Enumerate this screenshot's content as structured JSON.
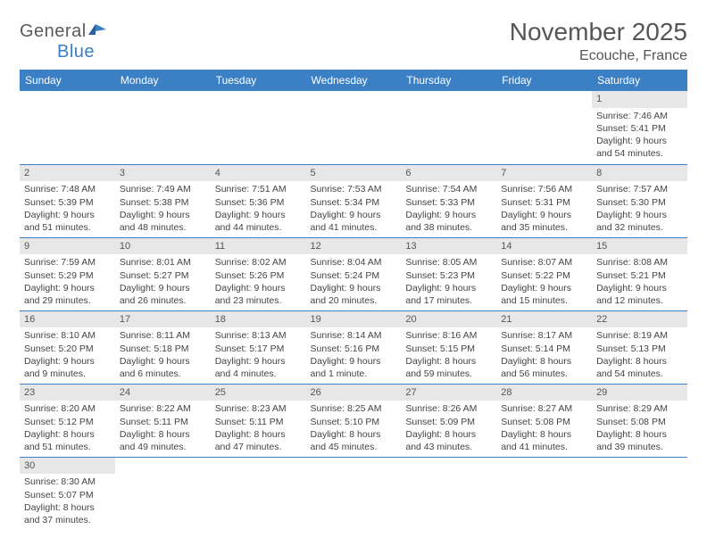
{
  "logo": {
    "text1": "General",
    "text2": "Blue"
  },
  "title": {
    "month": "November 2025",
    "location": "Ecouche, France"
  },
  "colors": {
    "header_bg": "#3b7fc4",
    "daynum_bg": "#e7e7e7",
    "row_border": "#3b7fc4",
    "text": "#555"
  },
  "day_headers": [
    "Sunday",
    "Monday",
    "Tuesday",
    "Wednesday",
    "Thursday",
    "Friday",
    "Saturday"
  ],
  "weeks": [
    [
      null,
      null,
      null,
      null,
      null,
      null,
      {
        "n": "1",
        "sr": "Sunrise: 7:46 AM",
        "ss": "Sunset: 5:41 PM",
        "dl": "Daylight: 9 hours and 54 minutes."
      }
    ],
    [
      {
        "n": "2",
        "sr": "Sunrise: 7:48 AM",
        "ss": "Sunset: 5:39 PM",
        "dl": "Daylight: 9 hours and 51 minutes."
      },
      {
        "n": "3",
        "sr": "Sunrise: 7:49 AM",
        "ss": "Sunset: 5:38 PM",
        "dl": "Daylight: 9 hours and 48 minutes."
      },
      {
        "n": "4",
        "sr": "Sunrise: 7:51 AM",
        "ss": "Sunset: 5:36 PM",
        "dl": "Daylight: 9 hours and 44 minutes."
      },
      {
        "n": "5",
        "sr": "Sunrise: 7:53 AM",
        "ss": "Sunset: 5:34 PM",
        "dl": "Daylight: 9 hours and 41 minutes."
      },
      {
        "n": "6",
        "sr": "Sunrise: 7:54 AM",
        "ss": "Sunset: 5:33 PM",
        "dl": "Daylight: 9 hours and 38 minutes."
      },
      {
        "n": "7",
        "sr": "Sunrise: 7:56 AM",
        "ss": "Sunset: 5:31 PM",
        "dl": "Daylight: 9 hours and 35 minutes."
      },
      {
        "n": "8",
        "sr": "Sunrise: 7:57 AM",
        "ss": "Sunset: 5:30 PM",
        "dl": "Daylight: 9 hours and 32 minutes."
      }
    ],
    [
      {
        "n": "9",
        "sr": "Sunrise: 7:59 AM",
        "ss": "Sunset: 5:29 PM",
        "dl": "Daylight: 9 hours and 29 minutes."
      },
      {
        "n": "10",
        "sr": "Sunrise: 8:01 AM",
        "ss": "Sunset: 5:27 PM",
        "dl": "Daylight: 9 hours and 26 minutes."
      },
      {
        "n": "11",
        "sr": "Sunrise: 8:02 AM",
        "ss": "Sunset: 5:26 PM",
        "dl": "Daylight: 9 hours and 23 minutes."
      },
      {
        "n": "12",
        "sr": "Sunrise: 8:04 AM",
        "ss": "Sunset: 5:24 PM",
        "dl": "Daylight: 9 hours and 20 minutes."
      },
      {
        "n": "13",
        "sr": "Sunrise: 8:05 AM",
        "ss": "Sunset: 5:23 PM",
        "dl": "Daylight: 9 hours and 17 minutes."
      },
      {
        "n": "14",
        "sr": "Sunrise: 8:07 AM",
        "ss": "Sunset: 5:22 PM",
        "dl": "Daylight: 9 hours and 15 minutes."
      },
      {
        "n": "15",
        "sr": "Sunrise: 8:08 AM",
        "ss": "Sunset: 5:21 PM",
        "dl": "Daylight: 9 hours and 12 minutes."
      }
    ],
    [
      {
        "n": "16",
        "sr": "Sunrise: 8:10 AM",
        "ss": "Sunset: 5:20 PM",
        "dl": "Daylight: 9 hours and 9 minutes."
      },
      {
        "n": "17",
        "sr": "Sunrise: 8:11 AM",
        "ss": "Sunset: 5:18 PM",
        "dl": "Daylight: 9 hours and 6 minutes."
      },
      {
        "n": "18",
        "sr": "Sunrise: 8:13 AM",
        "ss": "Sunset: 5:17 PM",
        "dl": "Daylight: 9 hours and 4 minutes."
      },
      {
        "n": "19",
        "sr": "Sunrise: 8:14 AM",
        "ss": "Sunset: 5:16 PM",
        "dl": "Daylight: 9 hours and 1 minute."
      },
      {
        "n": "20",
        "sr": "Sunrise: 8:16 AM",
        "ss": "Sunset: 5:15 PM",
        "dl": "Daylight: 8 hours and 59 minutes."
      },
      {
        "n": "21",
        "sr": "Sunrise: 8:17 AM",
        "ss": "Sunset: 5:14 PM",
        "dl": "Daylight: 8 hours and 56 minutes."
      },
      {
        "n": "22",
        "sr": "Sunrise: 8:19 AM",
        "ss": "Sunset: 5:13 PM",
        "dl": "Daylight: 8 hours and 54 minutes."
      }
    ],
    [
      {
        "n": "23",
        "sr": "Sunrise: 8:20 AM",
        "ss": "Sunset: 5:12 PM",
        "dl": "Daylight: 8 hours and 51 minutes."
      },
      {
        "n": "24",
        "sr": "Sunrise: 8:22 AM",
        "ss": "Sunset: 5:11 PM",
        "dl": "Daylight: 8 hours and 49 minutes."
      },
      {
        "n": "25",
        "sr": "Sunrise: 8:23 AM",
        "ss": "Sunset: 5:11 PM",
        "dl": "Daylight: 8 hours and 47 minutes."
      },
      {
        "n": "26",
        "sr": "Sunrise: 8:25 AM",
        "ss": "Sunset: 5:10 PM",
        "dl": "Daylight: 8 hours and 45 minutes."
      },
      {
        "n": "27",
        "sr": "Sunrise: 8:26 AM",
        "ss": "Sunset: 5:09 PM",
        "dl": "Daylight: 8 hours and 43 minutes."
      },
      {
        "n": "28",
        "sr": "Sunrise: 8:27 AM",
        "ss": "Sunset: 5:08 PM",
        "dl": "Daylight: 8 hours and 41 minutes."
      },
      {
        "n": "29",
        "sr": "Sunrise: 8:29 AM",
        "ss": "Sunset: 5:08 PM",
        "dl": "Daylight: 8 hours and 39 minutes."
      }
    ],
    [
      {
        "n": "30",
        "sr": "Sunrise: 8:30 AM",
        "ss": "Sunset: 5:07 PM",
        "dl": "Daylight: 8 hours and 37 minutes."
      },
      null,
      null,
      null,
      null,
      null,
      null
    ]
  ]
}
